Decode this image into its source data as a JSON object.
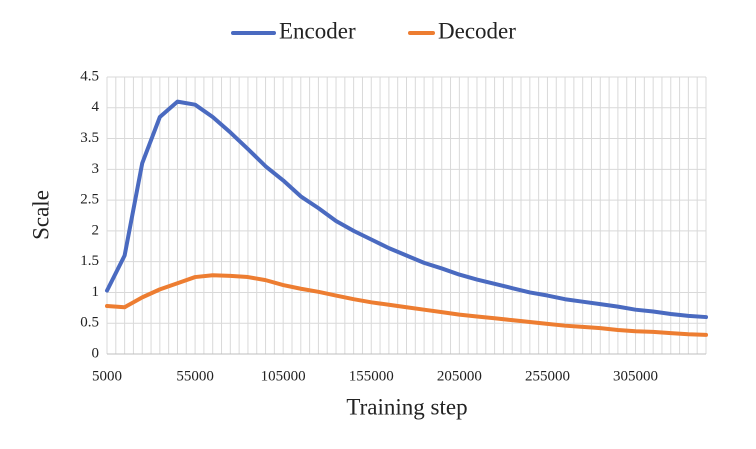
{
  "chart_data": {
    "type": "line",
    "x_label": "Training step",
    "y_label": "Scale",
    "x": [
      5000,
      15000,
      25000,
      35000,
      45000,
      55000,
      65000,
      75000,
      85000,
      95000,
      105000,
      115000,
      125000,
      135000,
      145000,
      155000,
      165000,
      175000,
      185000,
      195000,
      205000,
      215000,
      225000,
      235000,
      245000,
      255000,
      265000,
      275000,
      285000,
      295000,
      305000,
      315000,
      325000,
      335000,
      345000
    ],
    "series": [
      {
        "name": "Encoder",
        "color": "#4a6ac0",
        "values": [
          1.03,
          1.6,
          3.1,
          3.85,
          4.1,
          4.05,
          3.85,
          3.6,
          3.33,
          3.05,
          2.82,
          2.56,
          2.37,
          2.16,
          2.0,
          1.86,
          1.72,
          1.6,
          1.48,
          1.39,
          1.29,
          1.21,
          1.14,
          1.07,
          1.0,
          0.95,
          0.89,
          0.85,
          0.81,
          0.77,
          0.72,
          0.69,
          0.65,
          0.62,
          0.6
        ]
      },
      {
        "name": "Decoder",
        "color": "#ed7d31",
        "values": [
          0.78,
          0.76,
          0.92,
          1.05,
          1.15,
          1.25,
          1.28,
          1.27,
          1.25,
          1.2,
          1.12,
          1.06,
          1.01,
          0.95,
          0.89,
          0.84,
          0.8,
          0.76,
          0.72,
          0.68,
          0.64,
          0.61,
          0.58,
          0.55,
          0.52,
          0.49,
          0.46,
          0.44,
          0.42,
          0.39,
          0.37,
          0.36,
          0.34,
          0.32,
          0.31
        ]
      }
    ],
    "xlim": [
      5000,
      345000
    ],
    "xticks": [
      5000,
      55000,
      105000,
      155000,
      205000,
      255000,
      305000
    ],
    "x_grid_step": 5000,
    "ylim": [
      0,
      4.5
    ],
    "yticks": [
      0,
      0.5,
      1,
      1.5,
      2,
      2.5,
      3,
      3.5,
      4,
      4.5
    ],
    "grid": true,
    "legend": "top"
  }
}
